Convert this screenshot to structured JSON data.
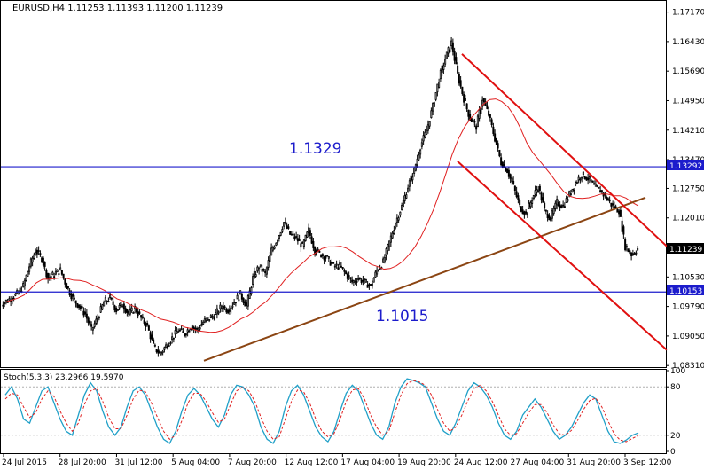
{
  "chart_data": [
    {
      "type": "candlestick",
      "title": "EURUSD,H4  1.11253 1.11393 1.11200 1.11239",
      "ylim": [
        1.0827,
        1.1745
      ],
      "y_ticks": [
        "1.17170",
        "1.16430",
        "1.15690",
        "1.14950",
        "1.14210",
        "1.13470",
        "1.12750",
        "1.12010",
        "1.11239",
        "1.10530",
        "1.09790",
        "1.09050",
        "1.08310"
      ],
      "x_ticks": [
        "24 Jul 2015",
        "28 Jul 20:00",
        "31 Jul 12:00",
        "5 Aug 04:00",
        "7 Aug 20:00",
        "12 Aug 12:00",
        "17 Aug 04:00",
        "19 Aug 20:00",
        "24 Aug 12:00",
        "27 Aug 04:00",
        "31 Aug 20:00",
        "3 Sep 12:00"
      ],
      "close_series": [
        1.099,
        1.1,
        1.101,
        1.103,
        1.108,
        1.112,
        1.11,
        1.105,
        1.106,
        1.107,
        1.103,
        1.1,
        1.098,
        1.096,
        1.092,
        1.095,
        1.099,
        1.1,
        1.097,
        1.0985,
        1.096,
        1.0975,
        1.095,
        1.093,
        1.088,
        1.086,
        1.088,
        1.09,
        1.092,
        1.091,
        1.093,
        1.092,
        1.094,
        1.095,
        1.096,
        1.098,
        1.097,
        1.099,
        1.101,
        1.098,
        1.105,
        1.108,
        1.106,
        1.112,
        1.115,
        1.119,
        1.116,
        1.115,
        1.113,
        1.117,
        1.112,
        1.111,
        1.11,
        1.108,
        1.108,
        1.106,
        1.104,
        1.105,
        1.104,
        1.103,
        1.107,
        1.109,
        1.114,
        1.119,
        1.123,
        1.128,
        1.132,
        1.138,
        1.142,
        1.148,
        1.155,
        1.16,
        1.164,
        1.156,
        1.15,
        1.145,
        1.143,
        1.15,
        1.146,
        1.14,
        1.134,
        1.132,
        1.128,
        1.123,
        1.121,
        1.125,
        1.128,
        1.122,
        1.12,
        1.124,
        1.123,
        1.126,
        1.129,
        1.131,
        1.13,
        1.128,
        1.127,
        1.125,
        1.123,
        1.122,
        1.113,
        1.111,
        1.1124
      ],
      "series": [
        {
          "name": "",
          "type": "moving-average",
          "color": "#e02020"
        }
      ],
      "horizontal_levels": [
        {
          "value": 1.13292,
          "label": "1.13292",
          "annotation": "1.1329",
          "color": "#1c1ccc"
        },
        {
          "value": 1.10153,
          "label": "1.10153",
          "annotation": "1.1015",
          "color": "#1c1ccc"
        }
      ],
      "current_price_label": "1.11239",
      "trendlines": [
        {
          "kind": "support",
          "color": "#8b4513"
        },
        {
          "kind": "channel-upper",
          "color": "#e01010"
        },
        {
          "kind": "channel-lower",
          "color": "#e01010"
        }
      ],
      "grid": false
    },
    {
      "type": "line",
      "title": "Stoch(5,3,3) 23.2966 19.5970",
      "ylim": [
        0,
        100
      ],
      "y_ticks": [
        "100",
        "80",
        "20",
        "0"
      ],
      "levels": [
        80,
        20
      ],
      "series": [
        {
          "name": "",
          "color": "#20a0c8",
          "values": [
            70,
            80,
            65,
            40,
            35,
            55,
            75,
            80,
            60,
            40,
            25,
            20,
            45,
            70,
            85,
            75,
            50,
            30,
            20,
            30,
            55,
            75,
            80,
            70,
            50,
            30,
            15,
            10,
            25,
            50,
            70,
            78,
            70,
            55,
            40,
            30,
            45,
            70,
            82,
            80,
            70,
            55,
            30,
            15,
            10,
            25,
            55,
            75,
            82,
            70,
            50,
            30,
            18,
            12,
            25,
            50,
            72,
            82,
            75,
            55,
            35,
            20,
            15,
            30,
            60,
            80,
            90,
            88,
            85,
            80,
            60,
            40,
            25,
            20,
            35,
            55,
            75,
            85,
            80,
            70,
            55,
            35,
            20,
            15,
            25,
            45,
            55,
            65,
            55,
            40,
            25,
            15,
            20,
            30,
            45,
            60,
            70,
            65,
            45,
            25,
            12,
            10,
            14,
            20,
            23
          ]
        },
        {
          "name": "",
          "color": "#e02020",
          "values": [
            65,
            72,
            70,
            55,
            42,
            48,
            65,
            75,
            68,
            50,
            35,
            25,
            35,
            58,
            75,
            78,
            62,
            42,
            28,
            28,
            45,
            65,
            76,
            74,
            60,
            42,
            25,
            15,
            20,
            38,
            60,
            72,
            72,
            62,
            48,
            36,
            40,
            58,
            75,
            80,
            75,
            62,
            42,
            25,
            15,
            18,
            40,
            62,
            76,
            74,
            60,
            40,
            25,
            18,
            22,
            40,
            62,
            76,
            78,
            65,
            45,
            30,
            20,
            25,
            48,
            70,
            84,
            88,
            86,
            82,
            70,
            52,
            35,
            25,
            30,
            45,
            63,
            78,
            82,
            75,
            62,
            45,
            28,
            20,
            22,
            35,
            48,
            58,
            58,
            48,
            33,
            22,
            20,
            26,
            38,
            52,
            63,
            66,
            55,
            38,
            22,
            14,
            12,
            16,
            19.6
          ]
        }
      ],
      "grid": false
    }
  ]
}
